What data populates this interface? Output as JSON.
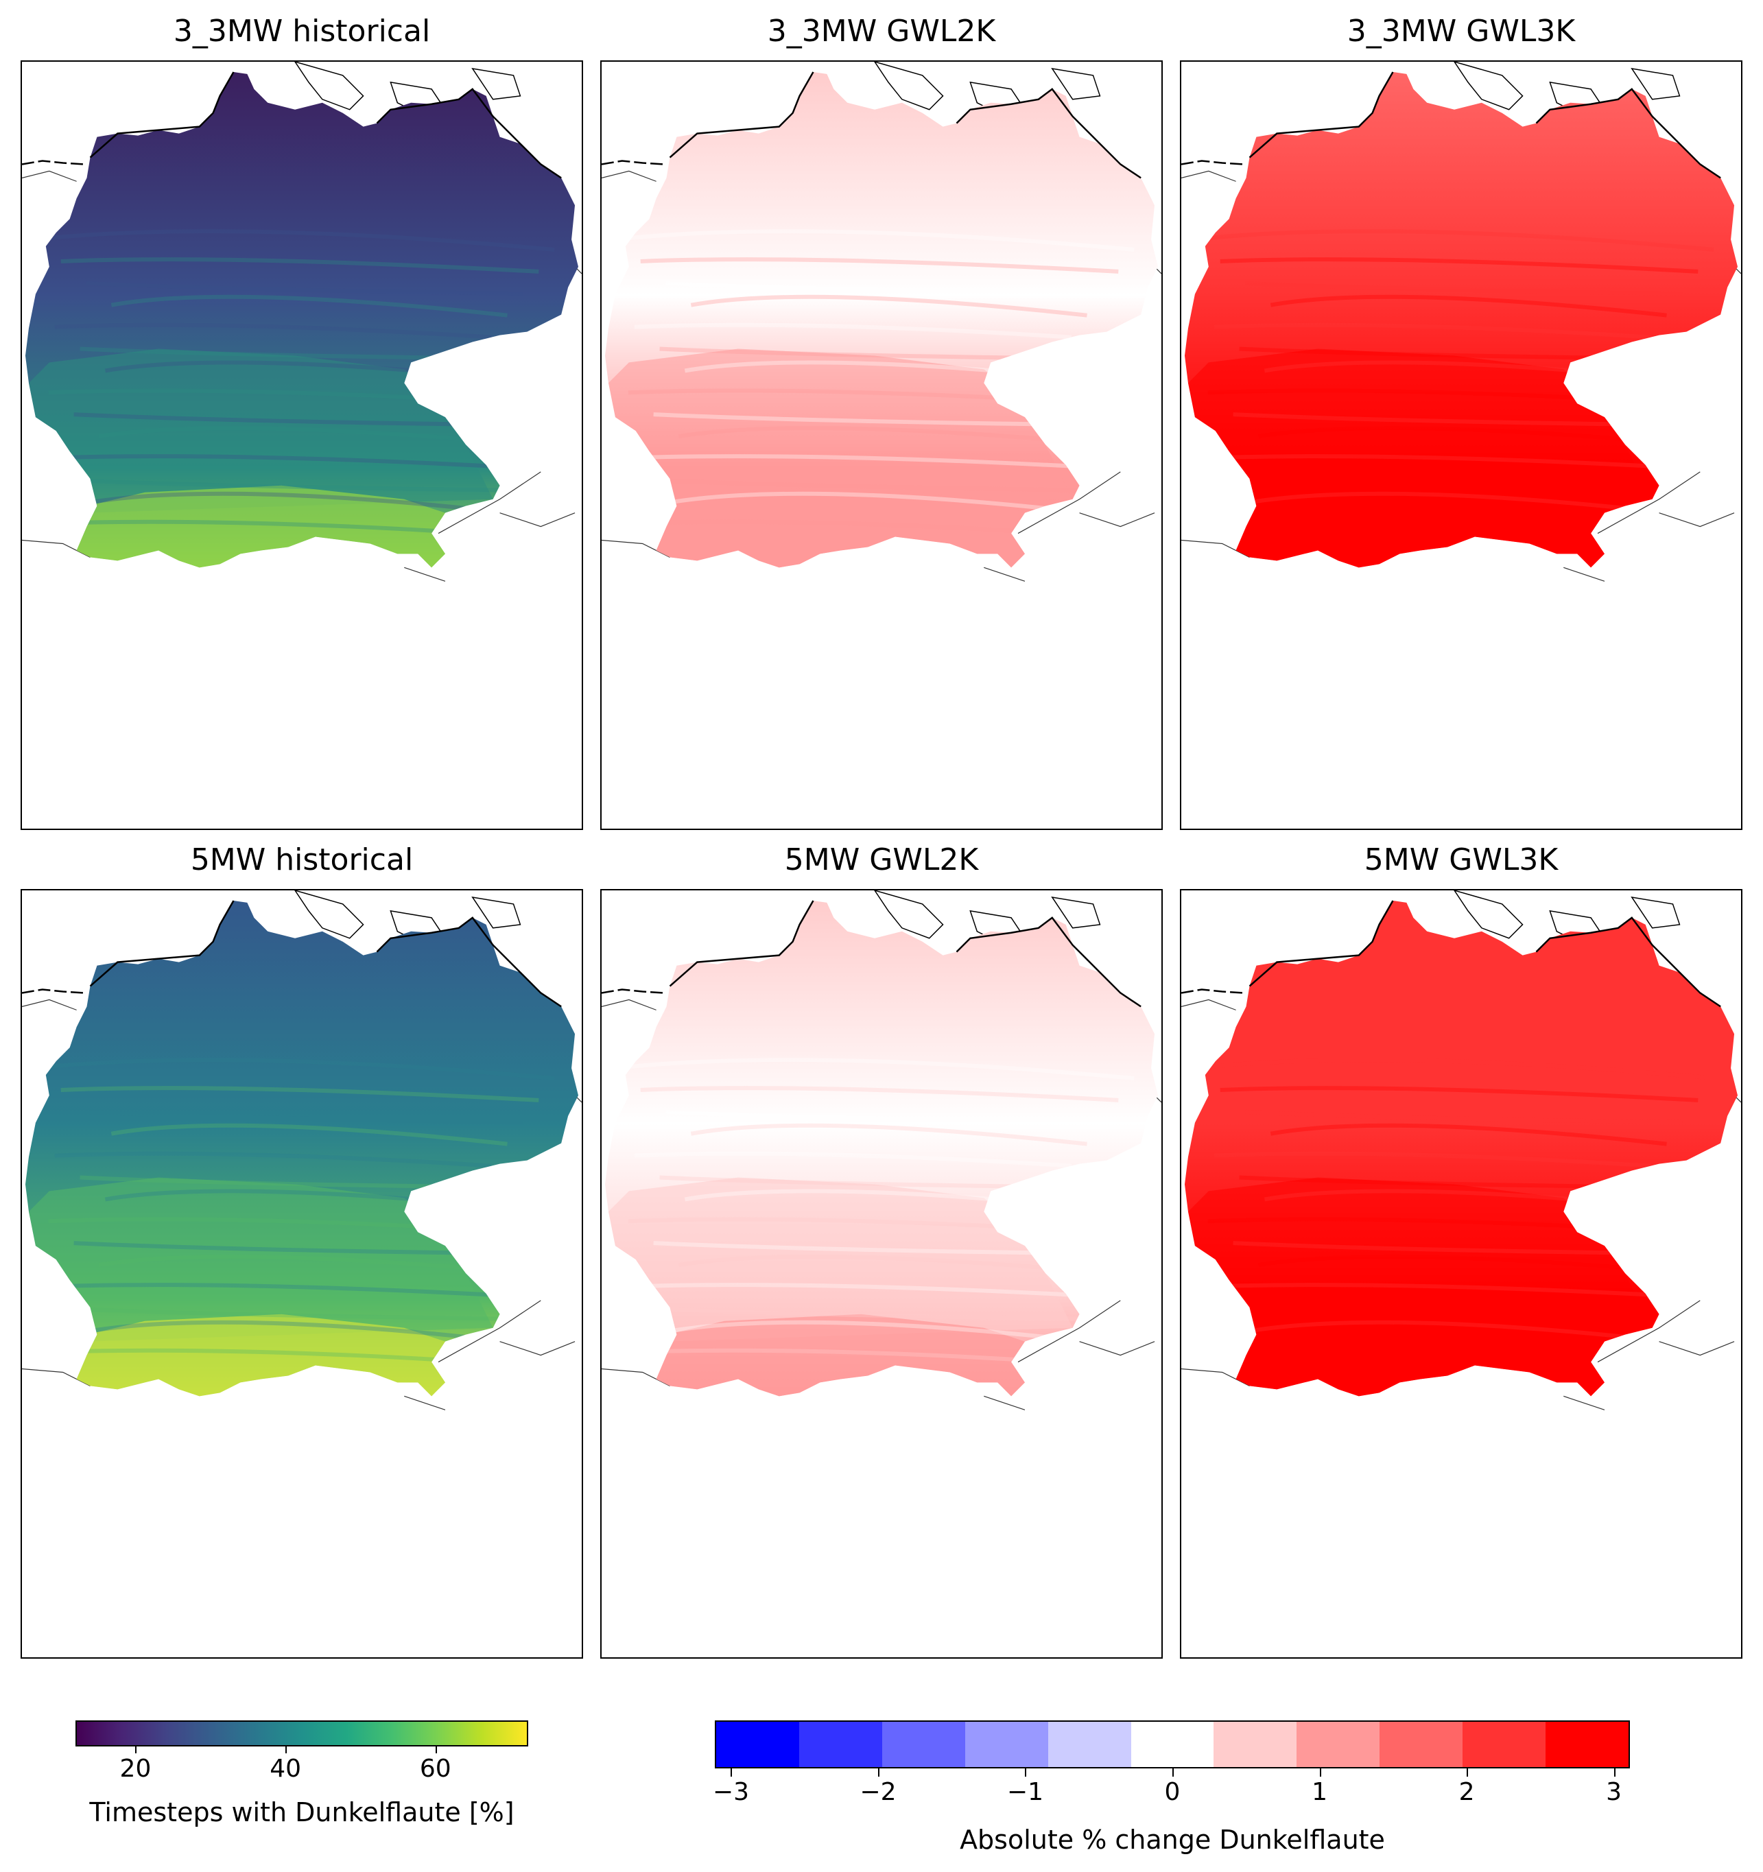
{
  "panels": [
    {
      "id": "p1",
      "title": "3_3MW historical",
      "kind": "historical-3mw"
    },
    {
      "id": "p2",
      "title": "3_3MW GWL2K",
      "kind": "gwl2-3mw"
    },
    {
      "id": "p3",
      "title": "3_3MW GWL3K",
      "kind": "gwl3-3mw"
    },
    {
      "id": "p4",
      "title": "5MW historical",
      "kind": "historical-5mw"
    },
    {
      "id": "p5",
      "title": "5MW GWL2K",
      "kind": "gwl2-5mw"
    },
    {
      "id": "p6",
      "title": "5MW GWL3K",
      "kind": "gwl3-5mw"
    }
  ],
  "colorbars": {
    "historical": {
      "label": "Timesteps with Dunkelflaute [%]",
      "colormap": "viridis",
      "range": [
        12,
        72
      ],
      "ticks": [
        20,
        40,
        60
      ],
      "tick_labels": [
        "20",
        "40",
        "60"
      ]
    },
    "change": {
      "label": "Absolute % change Dunkelflaute",
      "range": [
        -3.1,
        3.1
      ],
      "ticks": [
        -3,
        -2,
        -1,
        0,
        1,
        2,
        3
      ],
      "tick_labels": [
        "−3",
        "−2",
        "−1",
        "0",
        "1",
        "2",
        "3"
      ],
      "bins": [
        {
          "from": -3.1,
          "to": -2.54,
          "color": "#0000ff"
        },
        {
          "from": -2.54,
          "to": -1.98,
          "color": "#3333ff"
        },
        {
          "from": -1.98,
          "to": -1.41,
          "color": "#6666ff"
        },
        {
          "from": -1.41,
          "to": -0.85,
          "color": "#9999ff"
        },
        {
          "from": -0.85,
          "to": -0.28,
          "color": "#ccccff"
        },
        {
          "from": -0.28,
          "to": 0.28,
          "color": "#ffffff"
        },
        {
          "from": 0.28,
          "to": 0.85,
          "color": "#ffcccc"
        },
        {
          "from": 0.85,
          "to": 1.41,
          "color": "#ff9999"
        },
        {
          "from": 1.41,
          "to": 1.98,
          "color": "#ff6666"
        },
        {
          "from": 1.98,
          "to": 2.54,
          "color": "#ff3333"
        },
        {
          "from": 2.54,
          "to": 3.1,
          "color": "#ff0000"
        }
      ]
    }
  },
  "fills": {
    "historical-3mw": {
      "north": "#3b1f5e",
      "mid": "#3a4f8a",
      "south": "#2c8c80",
      "alps": "#8fd14a"
    },
    "historical-5mw": {
      "north": "#33588c",
      "mid": "#2a7f8e",
      "south": "#54b867",
      "alps": "#c7e040"
    },
    "gwl2-3mw": {
      "north": "#ffcccc",
      "mid": "#ffffff",
      "south": "#ff9999",
      "alps": "#ff9999"
    },
    "gwl2-5mw": {
      "north": "#ffcccc",
      "mid": "#ffffff",
      "south": "#ffcccc",
      "alps": "#ff9999"
    },
    "gwl3-3mw": {
      "north": "#ff6666",
      "mid": "#ff3333",
      "south": "#ff0000",
      "alps": "#ff0000"
    },
    "gwl3-5mw": {
      "north": "#ff3333",
      "mid": "#ff3333",
      "south": "#ff0000",
      "alps": "#ff0000"
    }
  }
}
